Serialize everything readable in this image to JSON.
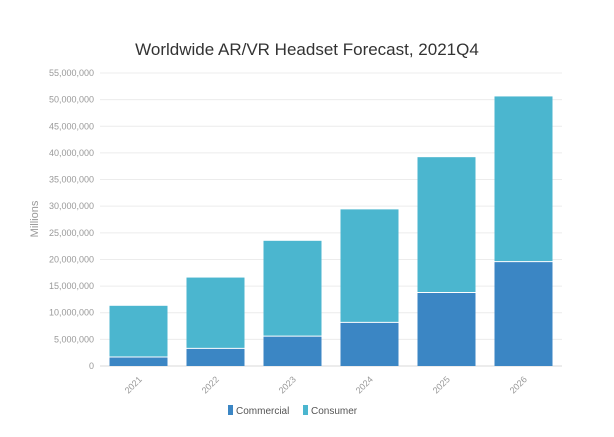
{
  "chart_data": {
    "type": "bar",
    "stacked": true,
    "title": "Worldwide AR/VR Headset Forecast, 2021Q4",
    "xlabel": "",
    "ylabel": "Millions",
    "categories": [
      "2021",
      "2022",
      "2023",
      "2024",
      "2025",
      "2026"
    ],
    "series": [
      {
        "name": "Commercial",
        "color": "#3b86c4",
        "values": [
          1700000,
          3300000,
          5600000,
          8200000,
          13800000,
          19600000
        ]
      },
      {
        "name": "Consumer",
        "color": "#4bb6cf",
        "values": [
          9600000,
          13300000,
          17900000,
          21200000,
          25400000,
          31000000
        ]
      }
    ],
    "ylim": [
      0,
      55000000
    ],
    "yticks": [
      0,
      5000000,
      10000000,
      15000000,
      20000000,
      25000000,
      30000000,
      35000000,
      40000000,
      45000000,
      50000000,
      55000000
    ],
    "ytick_labels": [
      "0",
      "5,000,000",
      "10,000,000",
      "15,000,000",
      "20,000,000",
      "25,000,000",
      "30,000,000",
      "35,000,000",
      "40,000,000",
      "45,000,000",
      "50,000,000",
      "55,000,000"
    ],
    "grid": true,
    "legend": "bottom-center"
  }
}
